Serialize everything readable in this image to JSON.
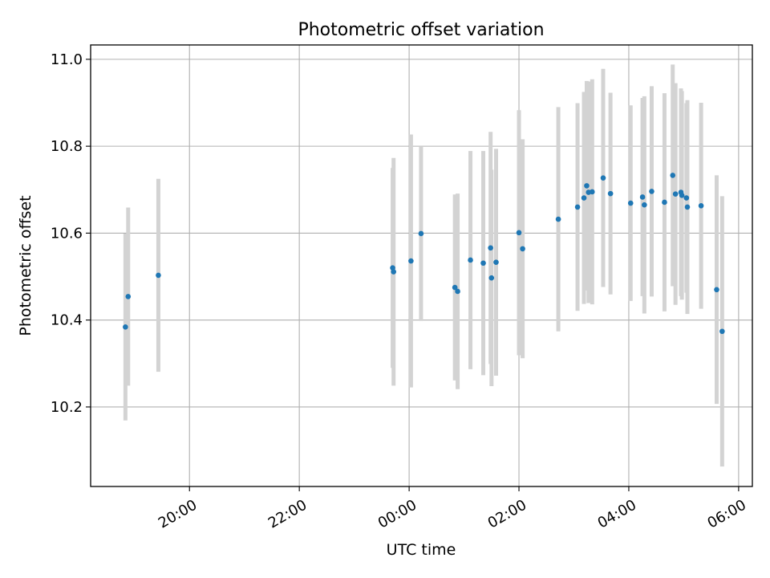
{
  "chart_data": {
    "type": "scatter",
    "title": "Photometric offset variation",
    "xlabel": "UTC time",
    "ylabel": "Photometric offset",
    "x_ticks": [
      "20:00",
      "22:00",
      "00:00",
      "02:00",
      "04:00",
      "06:00"
    ],
    "y_ticks": [
      "10.2",
      "10.4",
      "10.6",
      "10.8",
      "11.0"
    ],
    "x_tick_hours": [
      20,
      22,
      24,
      26,
      28,
      30
    ],
    "y_tick_values": [
      10.2,
      10.4,
      10.6,
      10.8,
      11.0
    ],
    "xlim_hours": [
      18.2,
      30.25
    ],
    "ylim": [
      10.017,
      11.033
    ],
    "grid": true,
    "colors": {
      "marker": "#1f77b4",
      "errorbar": "#d3d3d3",
      "grid": "#b0b0b0"
    },
    "points": [
      {
        "x": "18:50",
        "y": 10.384,
        "err": 0.215
      },
      {
        "x": "18:53",
        "y": 10.454,
        "err": 0.205
      },
      {
        "x": "19:26",
        "y": 10.503,
        "err": 0.222
      },
      {
        "x": "23:42",
        "y": 10.52,
        "err": 0.23
      },
      {
        "x": "23:43",
        "y": 10.511,
        "err": 0.262
      },
      {
        "x": "00:02",
        "y": 10.536,
        "err": 0.291
      },
      {
        "x": "00:13",
        "y": 10.599,
        "err": 0.201
      },
      {
        "x": "00:50",
        "y": 10.475,
        "err": 0.214
      },
      {
        "x": "00:53",
        "y": 10.466,
        "err": 0.225
      },
      {
        "x": "01:07",
        "y": 10.538,
        "err": 0.251
      },
      {
        "x": "01:21",
        "y": 10.531,
        "err": 0.258
      },
      {
        "x": "01:29",
        "y": 10.566,
        "err": 0.267
      },
      {
        "x": "01:30",
        "y": 10.497,
        "err": 0.249
      },
      {
        "x": "01:35",
        "y": 10.533,
        "err": 0.261
      },
      {
        "x": "02:00",
        "y": 10.601,
        "err": 0.282
      },
      {
        "x": "02:04",
        "y": 10.564,
        "err": 0.252
      },
      {
        "x": "02:43",
        "y": 10.632,
        "err": 0.258
      },
      {
        "x": "03:04",
        "y": 10.66,
        "err": 0.239
      },
      {
        "x": "03:11",
        "y": 10.681,
        "err": 0.244
      },
      {
        "x": "03:14",
        "y": 10.709,
        "err": 0.241
      },
      {
        "x": "03:16",
        "y": 10.694,
        "err": 0.255
      },
      {
        "x": "03:20",
        "y": 10.695,
        "err": 0.259
      },
      {
        "x": "03:32",
        "y": 10.727,
        "err": 0.251
      },
      {
        "x": "03:40",
        "y": 10.691,
        "err": 0.232
      },
      {
        "x": "04:02",
        "y": 10.669,
        "err": 0.225
      },
      {
        "x": "04:15",
        "y": 10.683,
        "err": 0.228
      },
      {
        "x": "04:17",
        "y": 10.665,
        "err": 0.25
      },
      {
        "x": "04:25",
        "y": 10.696,
        "err": 0.242
      },
      {
        "x": "04:39",
        "y": 10.671,
        "err": 0.251
      },
      {
        "x": "04:48",
        "y": 10.733,
        "err": 0.255
      },
      {
        "x": "04:51",
        "y": 10.69,
        "err": 0.255
      },
      {
        "x": "04:57",
        "y": 10.694,
        "err": 0.239
      },
      {
        "x": "04:58",
        "y": 10.687,
        "err": 0.24
      },
      {
        "x": "05:03",
        "y": 10.681,
        "err": 0.218
      },
      {
        "x": "05:04",
        "y": 10.66,
        "err": 0.246
      },
      {
        "x": "05:19",
        "y": 10.663,
        "err": 0.237
      },
      {
        "x": "05:36",
        "y": 10.47,
        "err": 0.263
      },
      {
        "x": "05:42",
        "y": 10.374,
        "err": 0.311
      }
    ]
  }
}
